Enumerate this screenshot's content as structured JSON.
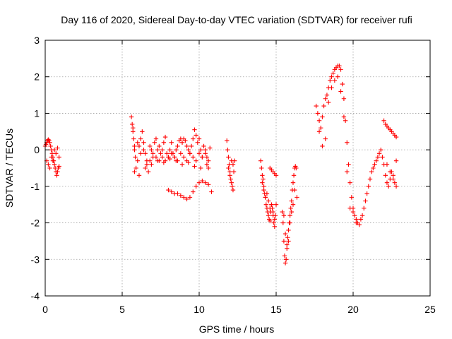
{
  "chart_data": {
    "type": "scatter",
    "title": "Day 116 of 2020, Sidereal Day-to-day VTEC variation (SDTVAR) for receiver rufi",
    "xlabel": "GPS time / hours",
    "ylabel": "SDTVAR / TECUs",
    "xlim": [
      0,
      25
    ],
    "ylim": [
      -4,
      3
    ],
    "xticks": [
      "0",
      "5",
      "10",
      "15",
      "20",
      "25"
    ],
    "yticks": [
      "3",
      "2",
      "1",
      "0",
      "-1",
      "-2",
      "-3",
      "-4"
    ],
    "grid": true,
    "marker": "+",
    "color": "#ff0000",
    "series": [
      {
        "name": "SDTVAR",
        "x": [
          0.0,
          0.05,
          0.1,
          0.15,
          0.2,
          0.25,
          0.3,
          0.35,
          0.4,
          0.45,
          0.5,
          0.55,
          0.6,
          0.65,
          0.7,
          0.75,
          0.8,
          0.85,
          0.9,
          0.1,
          0.2,
          0.3,
          0.4,
          0.5,
          0.6,
          0.7,
          0.8,
          0.9,
          5.6,
          5.65,
          5.7,
          5.75,
          5.8,
          5.85,
          5.9,
          6.0,
          6.1,
          6.2,
          6.3,
          6.4,
          6.5,
          6.6,
          6.7,
          6.8,
          6.9,
          7.0,
          7.1,
          7.2,
          7.3,
          7.4,
          7.5,
          7.6,
          7.7,
          7.8,
          7.9,
          8.0,
          8.1,
          8.2,
          8.3,
          8.4,
          8.5,
          8.6,
          8.7,
          8.8,
          8.9,
          9.0,
          9.1,
          9.2,
          9.3,
          9.4,
          9.5,
          9.6,
          9.7,
          9.8,
          9.9,
          10.0,
          10.1,
          10.2,
          10.3,
          10.4,
          10.5,
          10.6,
          10.7,
          5.7,
          5.8,
          6.0,
          6.2,
          6.4,
          6.6,
          6.8,
          7.0,
          7.2,
          7.4,
          7.6,
          7.8,
          8.0,
          8.2,
          8.4,
          8.6,
          8.8,
          9.0,
          9.2,
          9.4,
          9.6,
          9.8,
          10.0,
          10.2,
          10.4,
          10.6,
          5.8,
          6.1,
          6.5,
          6.9,
          7.3,
          7.7,
          8.1,
          8.5,
          8.9,
          9.3,
          9.7,
          10.1,
          10.5,
          8.0,
          8.2,
          8.4,
          8.6,
          8.8,
          9.0,
          9.2,
          9.4,
          9.6,
          9.8,
          10.0,
          10.2,
          10.4,
          10.6,
          10.8,
          11.8,
          11.85,
          11.9,
          11.95,
          12.0,
          12.05,
          12.1,
          12.15,
          12.2,
          12.25,
          12.3,
          11.9,
          12.0,
          12.1,
          12.2,
          14.0,
          14.05,
          14.1,
          14.15,
          14.2,
          14.25,
          14.3,
          14.35,
          14.4,
          14.45,
          14.5,
          14.55,
          14.6,
          14.65,
          14.7,
          14.75,
          14.8,
          14.85,
          14.9,
          14.95,
          15.0,
          14.1,
          14.2,
          14.3,
          14.4,
          14.5,
          14.6,
          14.7,
          14.8,
          14.9,
          14.6,
          14.7,
          14.8,
          14.9,
          15.0,
          15.4,
          15.45,
          15.5,
          15.55,
          15.6,
          15.65,
          15.7,
          15.75,
          15.8,
          15.85,
          15.9,
          15.95,
          16.0,
          16.05,
          16.1,
          16.15,
          16.2,
          16.25,
          16.3,
          16.35,
          15.5,
          15.6,
          15.7,
          15.8,
          15.9,
          16.0,
          16.1,
          16.2,
          17.6,
          17.7,
          17.8,
          17.9,
          18.0,
          18.1,
          18.2,
          18.3,
          18.4,
          18.5,
          18.6,
          18.7,
          18.8,
          18.9,
          19.0,
          19.1,
          19.2,
          19.3,
          19.4,
          19.5,
          19.6,
          19.7,
          19.8,
          19.9,
          20.0,
          20.1,
          20.2,
          20.3,
          20.4,
          20.5,
          17.8,
          18.0,
          18.2,
          18.4,
          18.6,
          18.8,
          19.0,
          19.2,
          19.4,
          19.6,
          19.8,
          20.0,
          20.2,
          20.6,
          20.7,
          20.8,
          20.9,
          21.0,
          21.1,
          21.2,
          21.3,
          21.4,
          21.5,
          21.6,
          21.7,
          21.8,
          21.9,
          22.0,
          22.1,
          22.2,
          22.3,
          22.4,
          22.5,
          22.6,
          22.7,
          22.8,
          22.0,
          22.1,
          22.2,
          22.3,
          22.4,
          22.5,
          22.6,
          22.7,
          22.8,
          22.2,
          22.4,
          22.6,
          22.8
        ],
        "y": [
          0.1,
          0.15,
          0.2,
          0.25,
          0.28,
          0.25,
          0.2,
          0.1,
          0.0,
          -0.1,
          -0.2,
          -0.3,
          -0.4,
          -0.5,
          -0.6,
          -0.7,
          -0.6,
          -0.5,
          -0.45,
          -0.3,
          -0.4,
          -0.5,
          -0.2,
          -0.3,
          0.0,
          -0.1,
          0.05,
          -0.2,
          0.9,
          0.7,
          0.5,
          0.3,
          0.1,
          -0.2,
          -0.5,
          -0.3,
          0.1,
          0.3,
          0.5,
          0.2,
          -0.1,
          -0.4,
          -0.6,
          -0.3,
          0.0,
          -0.2,
          0.2,
          0.3,
          0.0,
          -0.3,
          -0.1,
          0.0,
          0.2,
          0.35,
          -0.1,
          -0.2,
          0.0,
          0.2,
          -0.1,
          -0.2,
          0.0,
          0.1,
          0.25,
          0.3,
          0.2,
          0.3,
          0.25,
          0.1,
          0.0,
          -0.1,
          0.1,
          0.3,
          0.55,
          0.4,
          0.2,
          0.3,
          0.0,
          -0.2,
          0.1,
          0.0,
          -0.2,
          -0.5,
          0.05,
          0.6,
          0.0,
          0.2,
          -0.1,
          0.0,
          -0.3,
          0.1,
          -0.1,
          -0.2,
          0.1,
          -0.2,
          -0.3,
          -0.2,
          -0.1,
          -0.2,
          -0.3,
          -0.1,
          -0.2,
          -0.3,
          -0.1,
          -0.2,
          -0.3,
          -0.1,
          -0.2,
          -0.1,
          -0.3,
          -0.6,
          -0.7,
          -0.5,
          -0.4,
          -0.3,
          -0.35,
          -0.25,
          -0.3,
          -0.4,
          -0.35,
          -0.45,
          -0.5,
          -0.4,
          -1.1,
          -1.15,
          -1.2,
          -1.2,
          -1.25,
          -1.3,
          -1.35,
          -1.3,
          -1.15,
          -1.0,
          -0.9,
          -0.85,
          -0.9,
          -0.95,
          -1.15,
          0.25,
          0.0,
          -0.2,
          -0.4,
          -0.6,
          -0.8,
          -0.9,
          -1.0,
          -1.1,
          -0.6,
          -0.3,
          -0.5,
          -0.7,
          -0.3,
          -0.4,
          -0.3,
          -0.5,
          -0.7,
          -0.8,
          -1.0,
          -1.2,
          -1.3,
          -1.5,
          -1.6,
          -1.7,
          -1.8,
          -1.9,
          -1.95,
          -1.7,
          -1.5,
          -1.6,
          -1.8,
          -2.0,
          -2.1,
          -1.8,
          -1.5,
          -0.9,
          -1.1,
          -1.3,
          -1.2,
          -1.4,
          -1.6,
          -1.5,
          -1.7,
          -1.9,
          -0.5,
          -0.55,
          -0.6,
          -0.65,
          -0.7,
          -1.7,
          -2.0,
          -2.5,
          -2.9,
          -3.1,
          -3.0,
          -2.7,
          -2.4,
          -2.2,
          -2.0,
          -1.8,
          -1.6,
          -1.4,
          -1.1,
          -0.9,
          -0.7,
          -0.5,
          -0.45,
          -0.5,
          -1.3,
          -1.8,
          -2.3,
          -2.6,
          -2.5,
          -2.0,
          -1.7,
          -1.5,
          -1.1,
          1.2,
          1.0,
          0.8,
          0.6,
          0.9,
          1.2,
          1.4,
          1.5,
          1.7,
          1.9,
          2.0,
          2.1,
          2.2,
          2.25,
          2.3,
          2.3,
          2.2,
          1.8,
          1.4,
          0.8,
          0.2,
          -0.4,
          -0.9,
          -1.3,
          -1.6,
          -1.8,
          -1.9,
          -2.0,
          -2.05,
          -1.9,
          0.5,
          0.1,
          0.3,
          1.3,
          1.7,
          1.9,
          2.0,
          1.6,
          0.9,
          -0.6,
          -1.6,
          -1.7,
          -2.0,
          -1.8,
          -1.6,
          -1.4,
          -1.2,
          -1.0,
          -0.8,
          -0.6,
          -0.5,
          -0.4,
          -0.3,
          -0.2,
          -0.1,
          0.0,
          -0.2,
          -0.4,
          -0.7,
          -0.9,
          -1.0,
          -0.8,
          -0.6,
          -0.7,
          -0.9,
          -1.0,
          0.8,
          0.7,
          0.65,
          0.6,
          0.55,
          0.5,
          0.45,
          0.4,
          0.35,
          -0.4,
          -0.6,
          -0.8,
          -0.3
        ]
      }
    ]
  }
}
